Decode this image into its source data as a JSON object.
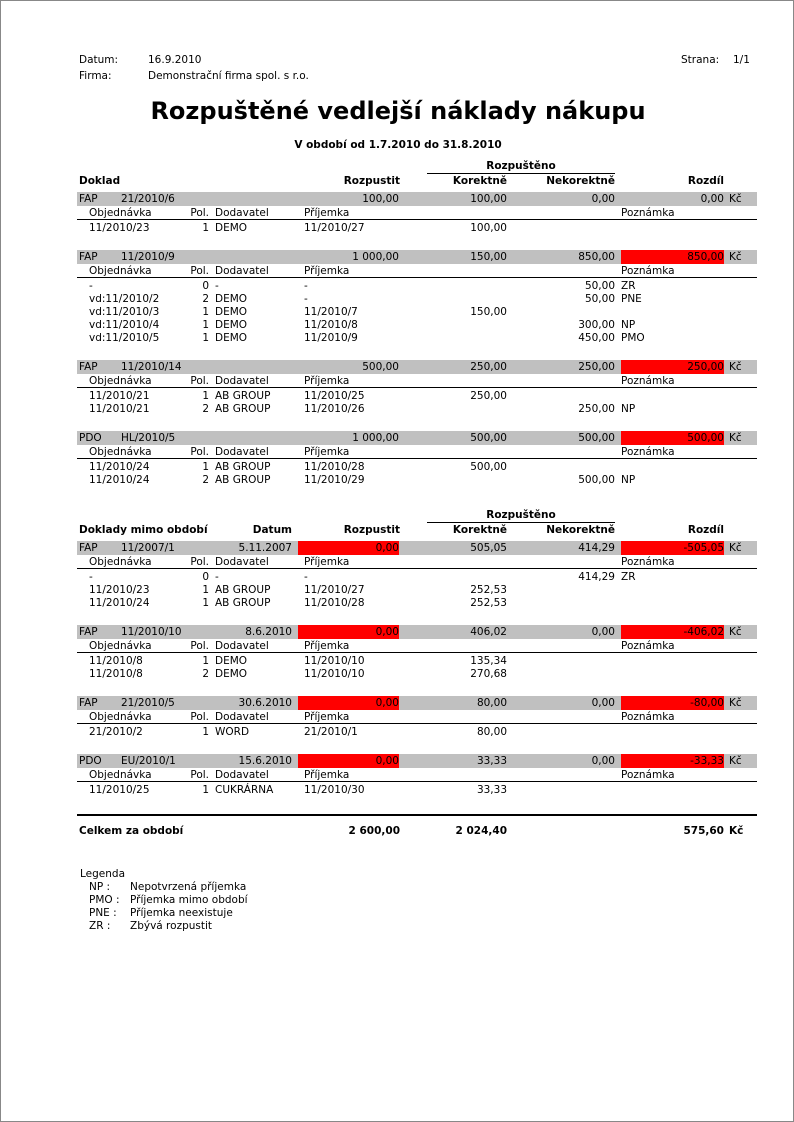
{
  "header": {
    "datum_label": "Datum:",
    "datum": "16.9.2010",
    "firma_label": "Firma:",
    "firma": "Demonstrační firma spol. s r.o.",
    "strana_label": "Strana:",
    "strana": "1/1"
  },
  "title": "Rozpuštěné vedlejší náklady nákupu",
  "subtitle": "V období od 1.7.2010 do 31.8.2010",
  "columns": {
    "doklad": "Doklad",
    "doklady_mimo": "Doklady mimo období",
    "datum": "Datum",
    "rozpustit": "Rozpustit",
    "rozpusteno": "Rozpuštěno",
    "korektne": "Korektně",
    "nekorektne": "Nekorektně",
    "rozdil": "Rozdíl",
    "objednavka": "Objednávka",
    "pol": "Pol.",
    "dodavatel": "Dodavatel",
    "prijemka": "Příjemka",
    "poznamka": "Poznámka",
    "currency": "Kč"
  },
  "colors": {
    "highlight": "#ff0000",
    "bar": "#c0c0c0"
  },
  "sections": [
    {
      "groups": [
        {
          "type": "FAP",
          "doc": "21/2010/6",
          "datum": "",
          "rozpustit": "100,00",
          "rozpustit_red": false,
          "korektne": "100,00",
          "nekorektne": "0,00",
          "rozdil": "0,00",
          "rozdil_red": false,
          "rows": [
            [
              "11/2010/23",
              "1",
              "DEMO",
              "11/2010/27",
              "100,00",
              "",
              ""
            ]
          ]
        },
        {
          "type": "FAP",
          "doc": "11/2010/9",
          "datum": "",
          "rozpustit": "1 000,00",
          "rozpustit_red": false,
          "korektne": "150,00",
          "nekorektne": "850,00",
          "rozdil": "850,00",
          "rozdil_red": true,
          "rows": [
            [
              "-",
              "0",
              "-",
              "-",
              "",
              "50,00",
              "ZR"
            ],
            [
              "vd:11/2010/2",
              "2",
              "DEMO",
              "-",
              "",
              "50,00",
              "PNE"
            ],
            [
              "vd:11/2010/3",
              "1",
              "DEMO",
              "11/2010/7",
              "150,00",
              "",
              ""
            ],
            [
              "vd:11/2010/4",
              "1",
              "DEMO",
              "11/2010/8",
              "",
              "300,00",
              "NP"
            ],
            [
              "vd:11/2010/5",
              "1",
              "DEMO",
              "11/2010/9",
              "",
              "450,00",
              "PMO"
            ]
          ]
        },
        {
          "type": "FAP",
          "doc": "11/2010/14",
          "datum": "",
          "rozpustit": "500,00",
          "rozpustit_red": false,
          "korektne": "250,00",
          "nekorektne": "250,00",
          "rozdil": "250,00",
          "rozdil_red": true,
          "rows": [
            [
              "11/2010/21",
              "1",
              "AB GROUP",
              "11/2010/25",
              "250,00",
              "",
              ""
            ],
            [
              "11/2010/21",
              "2",
              "AB GROUP",
              "11/2010/26",
              "",
              "250,00",
              "NP"
            ]
          ]
        },
        {
          "type": "PDO",
          "doc": "HL/2010/5",
          "datum": "",
          "rozpustit": "1 000,00",
          "rozpustit_red": false,
          "korektne": "500,00",
          "nekorektne": "500,00",
          "rozdil": "500,00",
          "rozdil_red": true,
          "rows": [
            [
              "11/2010/24",
              "1",
              "AB GROUP",
              "11/2010/28",
              "500,00",
              "",
              ""
            ],
            [
              "11/2010/24",
              "2",
              "AB GROUP",
              "11/2010/29",
              "",
              "500,00",
              "NP"
            ]
          ]
        }
      ]
    },
    {
      "mimo": true,
      "groups": [
        {
          "type": "FAP",
          "doc": "11/2007/1",
          "datum": "5.11.2007",
          "rozpustit": "0,00",
          "rozpustit_red": true,
          "korektne": "505,05",
          "nekorektne": "414,29",
          "rozdil": "-505,05",
          "rozdil_red": true,
          "rows": [
            [
              "-",
              "0",
              "-",
              "-",
              "",
              "414,29",
              "ZR"
            ],
            [
              "11/2010/23",
              "1",
              "AB GROUP",
              "11/2010/27",
              "252,53",
              "",
              ""
            ],
            [
              "11/2010/24",
              "1",
              "AB GROUP",
              "11/2010/28",
              "252,53",
              "",
              ""
            ]
          ]
        },
        {
          "type": "FAP",
          "doc": "11/2010/10",
          "datum": "8.6.2010",
          "rozpustit": "0,00",
          "rozpustit_red": true,
          "korektne": "406,02",
          "nekorektne": "0,00",
          "rozdil": "-406,02",
          "rozdil_red": true,
          "rows": [
            [
              "11/2010/8",
              "1",
              "DEMO",
              "11/2010/10",
              "135,34",
              "",
              ""
            ],
            [
              "11/2010/8",
              "2",
              "DEMO",
              "11/2010/10",
              "270,68",
              "",
              ""
            ]
          ]
        },
        {
          "type": "FAP",
          "doc": "21/2010/5",
          "datum": "30.6.2010",
          "rozpustit": "0,00",
          "rozpustit_red": true,
          "korektne": "80,00",
          "nekorektne": "0,00",
          "rozdil": "-80,00",
          "rozdil_red": true,
          "rows": [
            [
              "21/2010/2",
              "1",
              "WORD",
              "21/2010/1",
              "80,00",
              "",
              ""
            ]
          ]
        },
        {
          "type": "PDO",
          "doc": "EU/2010/1",
          "datum": "15.6.2010",
          "rozpustit": "0,00",
          "rozpustit_red": true,
          "korektne": "33,33",
          "nekorektne": "0,00",
          "rozdil": "-33,33",
          "rozdil_red": true,
          "rows": [
            [
              "11/2010/25",
              "1",
              "CUKRÁRNA",
              "11/2010/30",
              "33,33",
              "",
              ""
            ]
          ]
        }
      ]
    }
  ],
  "total": {
    "label": "Celkem za období",
    "rozpustit": "2 600,00",
    "korektne": "2 024,40",
    "rozdil": "575,60",
    "currency": "Kč"
  },
  "legend": {
    "title": "Legenda",
    "items": [
      {
        "code": "NP :",
        "text": "Nepotvrzená příjemka"
      },
      {
        "code": "PMO :",
        "text": "Příjemka mimo období"
      },
      {
        "code": "PNE :",
        "text": "Příjemka neexistuje"
      },
      {
        "code": "ZR :",
        "text": "Zbývá rozpustit"
      }
    ]
  }
}
